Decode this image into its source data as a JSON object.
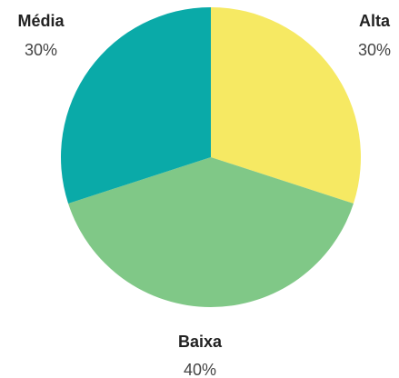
{
  "chart_data": {
    "type": "pie",
    "title": "",
    "categories": [
      "Alta",
      "Baixa",
      "Média"
    ],
    "values": [
      30,
      40,
      30
    ],
    "value_labels": [
      "30%",
      "40%",
      "30%"
    ],
    "colors": [
      "#F6E963",
      "#80C887",
      "#0AAAA8"
    ],
    "start_angle": "12 o'clock",
    "direction": "clockwise",
    "legend": "none",
    "label_placement": "outside"
  }
}
